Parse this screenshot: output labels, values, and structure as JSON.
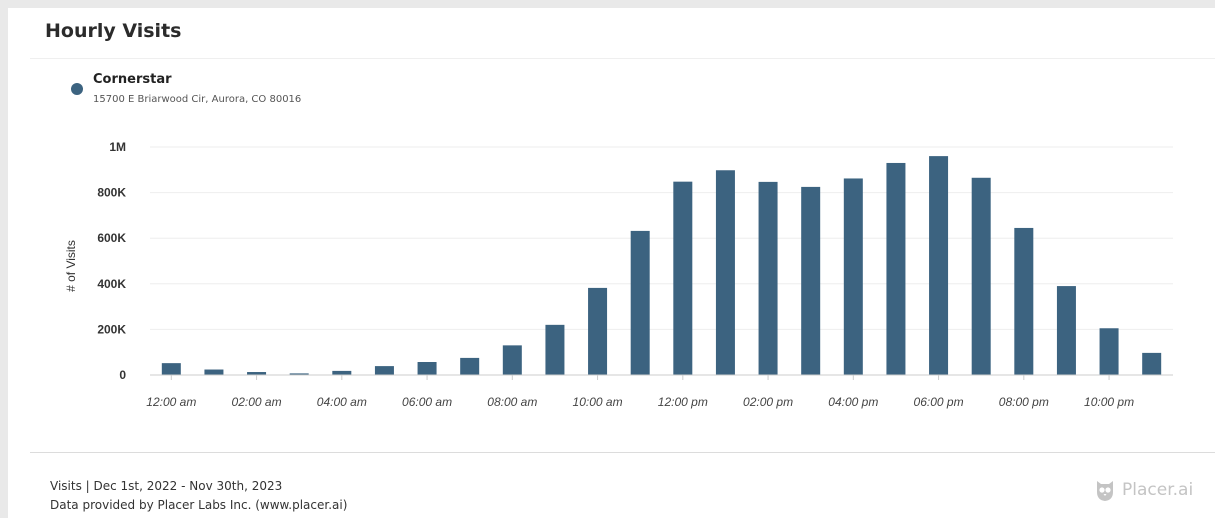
{
  "card": {
    "title": "Hourly Visits"
  },
  "legend": {
    "name": "Cornerstar",
    "address": "15700 E Briarwood Cir, Aurora, CO 80016",
    "color": "#3c6380"
  },
  "chart_data": {
    "type": "bar",
    "ylabel": "# of Visits",
    "ylim": [
      0,
      1000000
    ],
    "y_ticks": [
      0,
      200000,
      400000,
      600000,
      800000,
      1000000
    ],
    "y_tick_labels": [
      "0",
      "200K",
      "400K",
      "600K",
      "800K",
      "1M"
    ],
    "categories": [
      "12:00 am",
      "01:00 am",
      "02:00 am",
      "03:00 am",
      "04:00 am",
      "05:00 am",
      "06:00 am",
      "07:00 am",
      "08:00 am",
      "09:00 am",
      "10:00 am",
      "11:00 am",
      "12:00 pm",
      "01:00 pm",
      "02:00 pm",
      "03:00 pm",
      "04:00 pm",
      "05:00 pm",
      "06:00 pm",
      "07:00 pm",
      "08:00 pm",
      "09:00 pm",
      "10:00 pm",
      "11:00 pm"
    ],
    "x_tick_labels": [
      "12:00 am",
      "02:00 am",
      "04:00 am",
      "06:00 am",
      "08:00 am",
      "10:00 am",
      "12:00 pm",
      "02:00 pm",
      "04:00 pm",
      "06:00 pm",
      "08:00 pm",
      "10:00 pm"
    ],
    "series": [
      {
        "values": [
          52000,
          24000,
          13000,
          7000,
          18000,
          39000,
          57000,
          75000,
          130000,
          220000,
          382000,
          632000,
          848000,
          898000,
          847000,
          825000,
          862000,
          930000,
          960000,
          865000,
          645000,
          390000,
          205000,
          97000
        ]
      }
    ],
    "grid": true,
    "bar_color": "#3c6380"
  },
  "footer": {
    "period": "Visits | Dec 1st, 2022 - Nov 30th, 2023",
    "source": "Data provided by Placer Labs Inc. (www.placer.ai)",
    "brand": "Placer.ai",
    "brand_icon": "placer-owl-icon"
  }
}
